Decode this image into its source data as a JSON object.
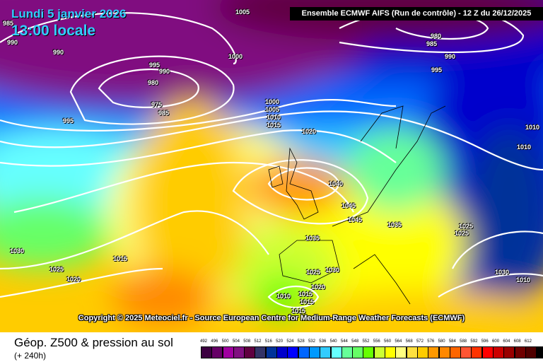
{
  "map": {
    "date_label": "Lundi 5 janvier 2026",
    "time_label": "13:00 locale",
    "header": "Ensemble ECMWF AIFS  (Run de contrôle)  -  12 Z du 26/12/2025",
    "copyright": "Copyright © 2025 Meteociel.fr - Source European Centre for Medium-Range Weather Forecasts (ECMWF)",
    "isobar_labels": [
      "985",
      "990",
      "1005",
      "990",
      "980",
      "985",
      "990",
      "995",
      "990",
      "1000",
      "995",
      "980",
      "975",
      "985",
      "995",
      "1000",
      "1005",
      "1010",
      "1015",
      "1020",
      "1010",
      "1010",
      "1040",
      "1045",
      "1045",
      "1035",
      "1025",
      "1025",
      "1035",
      "1030",
      "1015",
      "1030",
      "1025",
      "1020",
      "1025",
      "1030",
      "1020",
      "1010",
      "1015",
      "1015",
      "1015",
      "1015",
      "1010"
    ]
  },
  "footer": {
    "title": "Géop. Z500 & pression au sol",
    "subtitle": "(+ 240h)"
  },
  "legend": {
    "labels": [
      "492",
      "496",
      "500",
      "504",
      "508",
      "512",
      "516",
      "520",
      "524",
      "528",
      "532",
      "536",
      "540",
      "544",
      "548",
      "552",
      "556",
      "560",
      "564",
      "568",
      "572",
      "576",
      "580",
      "584",
      "588",
      "592",
      "596",
      "600",
      "604",
      "608",
      "612",
      ""
    ],
    "colors": [
      "#3c0040",
      "#660066",
      "#a000a0",
      "#801080",
      "#600040",
      "#333366",
      "#003399",
      "#0000cc",
      "#0000ff",
      "#0066ff",
      "#0099ff",
      "#33ccff",
      "#66ffff",
      "#66ff99",
      "#66ff66",
      "#66ff00",
      "#ccff33",
      "#ffff00",
      "#ffff80",
      "#ffe040",
      "#ffcc00",
      "#ff9900",
      "#ff8800",
      "#ff6600",
      "#ff5533",
      "#ff3300",
      "#ff0000",
      "#cc0000",
      "#990000",
      "#700000",
      "#500000",
      "#000000"
    ]
  }
}
